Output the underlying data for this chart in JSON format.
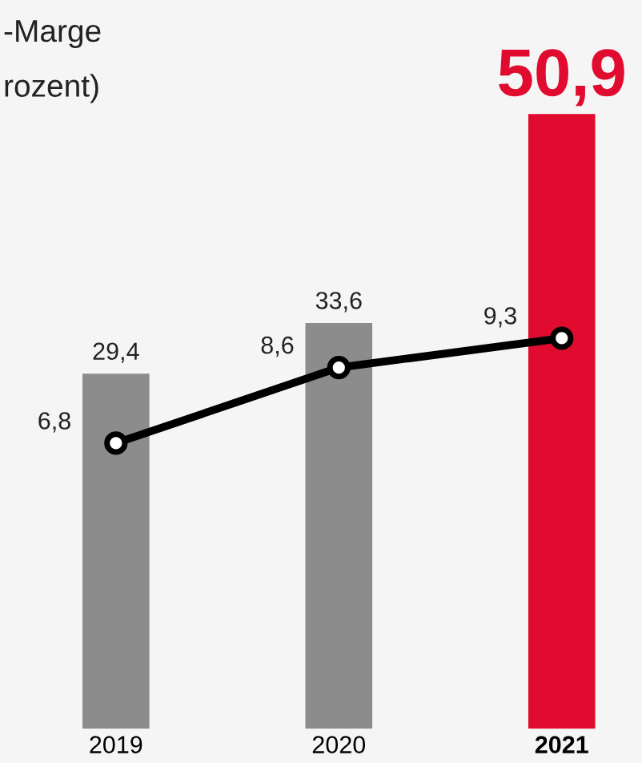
{
  "chart_data": {
    "type": "bar",
    "annotations": [
      "-Marge",
      "rozent)"
    ],
    "categories": [
      "2019",
      "2020",
      "2021"
    ],
    "series": [
      {
        "color": "#8c8c8c",
        "colors": [
          "#8c8c8c",
          "#8c8c8c",
          "#e00b2f"
        ],
        "values": [
          29.4,
          33.6,
          50.9
        ],
        "value_labels": [
          "29,4",
          "33,6",
          "50,9"
        ]
      },
      {
        "type": "line",
        "axis": "y2",
        "color": "#000000",
        "values": [
          6.8,
          8.6,
          9.3
        ],
        "value_labels": [
          "6,8",
          "8,6",
          "9,3"
        ],
        "marker": "circle",
        "line_style": "solid"
      }
    ],
    "tick_labels": "x",
    "grid": false,
    "legend": false
  }
}
